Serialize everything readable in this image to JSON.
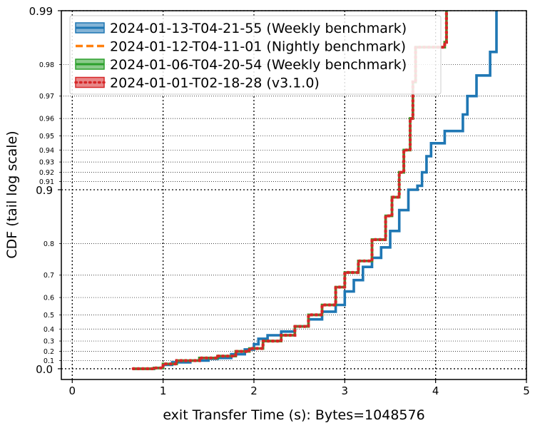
{
  "chart_data": {
    "type": "line",
    "subtype": "step-cdf",
    "xlabel": "exit Transfer Time (s): Bytes=1048576",
    "ylabel": "CDF (tail log scale)",
    "xlim": [
      -0.12,
      5.0
    ],
    "x_ticks": [
      0,
      1,
      2,
      3,
      4,
      5
    ],
    "x_tick_labels": [
      "0",
      "1",
      "2",
      "3",
      "4",
      "5"
    ],
    "y_scale": "tail-log (-log10(1 - p))",
    "ylim": [
      0.0,
      0.99
    ],
    "y_major_ticks": [
      0.0,
      0.9,
      0.99
    ],
    "y_major_tick_labels": [
      "0.0",
      "0.9",
      "0.99"
    ],
    "y_minor_ticks": [
      0.1,
      0.2,
      0.3,
      0.4,
      0.5,
      0.6,
      0.7,
      0.8,
      0.91,
      0.92,
      0.93,
      0.94,
      0.95,
      0.96,
      0.97,
      0.98
    ],
    "y_minor_tick_labels": [
      "0.1",
      "0.2",
      "0.3",
      "0.4",
      "0.5",
      "0.6",
      "0.7",
      "0.8",
      "0.91",
      "0.92",
      "0.93",
      "0.94",
      "0.95",
      "0.96",
      "0.97",
      "0.98"
    ],
    "grid": true,
    "legend_position": "top-left",
    "series": [
      {
        "name": "2024-01-13-T04-21-55 (Weekly benchmark)",
        "color": "#1f77b4",
        "style": "solid",
        "points": [
          [
            0.67,
            0.0
          ],
          [
            0.9,
            0.01
          ],
          [
            1.0,
            0.05
          ],
          [
            1.1,
            0.08
          ],
          [
            1.3,
            0.1
          ],
          [
            1.5,
            0.12
          ],
          [
            1.6,
            0.13
          ],
          [
            1.75,
            0.17
          ],
          [
            1.9,
            0.22
          ],
          [
            2.0,
            0.27
          ],
          [
            2.05,
            0.32
          ],
          [
            2.15,
            0.35
          ],
          [
            2.3,
            0.38
          ],
          [
            2.45,
            0.42
          ],
          [
            2.6,
            0.47
          ],
          [
            2.75,
            0.52
          ],
          [
            2.9,
            0.56
          ],
          [
            3.0,
            0.63
          ],
          [
            3.1,
            0.68
          ],
          [
            3.2,
            0.73
          ],
          [
            3.3,
            0.76
          ],
          [
            3.4,
            0.79
          ],
          [
            3.5,
            0.83
          ],
          [
            3.6,
            0.87
          ],
          [
            3.7,
            0.9
          ],
          [
            3.8,
            0.905
          ],
          [
            3.85,
            0.92
          ],
          [
            3.9,
            0.935
          ],
          [
            3.95,
            0.945
          ],
          [
            4.1,
            0.953
          ],
          [
            4.3,
            0.962
          ],
          [
            4.35,
            0.97
          ],
          [
            4.45,
            0.977
          ],
          [
            4.6,
            0.983
          ],
          [
            4.67,
            0.99
          ]
        ]
      },
      {
        "name": "2024-01-12-T04-11-01 (Nightly benchmark)",
        "color": "#ff7f0e",
        "style": "dashed",
        "points": [
          [
            0.67,
            0.0
          ],
          [
            0.9,
            0.01
          ],
          [
            1.0,
            0.06
          ],
          [
            1.15,
            0.1
          ],
          [
            1.4,
            0.13
          ],
          [
            1.6,
            0.15
          ],
          [
            1.8,
            0.2
          ],
          [
            1.95,
            0.23
          ],
          [
            2.1,
            0.3
          ],
          [
            2.3,
            0.35
          ],
          [
            2.45,
            0.42
          ],
          [
            2.6,
            0.5
          ],
          [
            2.75,
            0.56
          ],
          [
            2.9,
            0.65
          ],
          [
            3.0,
            0.71
          ],
          [
            3.15,
            0.75
          ],
          [
            3.3,
            0.81
          ],
          [
            3.45,
            0.86
          ],
          [
            3.52,
            0.89
          ],
          [
            3.6,
            0.92
          ],
          [
            3.65,
            0.94
          ],
          [
            3.72,
            0.96
          ],
          [
            3.75,
            0.975
          ],
          [
            3.78,
            0.984
          ],
          [
            4.1,
            0.985
          ],
          [
            4.12,
            0.99
          ]
        ]
      },
      {
        "name": "2024-01-06-T04-20-54 (Weekly benchmark)",
        "color": "#2ca02c",
        "style": "solid",
        "points": [
          [
            0.67,
            0.0
          ],
          [
            0.9,
            0.01
          ],
          [
            1.0,
            0.06
          ],
          [
            1.15,
            0.1
          ],
          [
            1.4,
            0.13
          ],
          [
            1.6,
            0.15
          ],
          [
            1.8,
            0.2
          ],
          [
            1.95,
            0.23
          ],
          [
            2.1,
            0.3
          ],
          [
            2.3,
            0.35
          ],
          [
            2.45,
            0.42
          ],
          [
            2.6,
            0.5
          ],
          [
            2.75,
            0.56
          ],
          [
            2.9,
            0.65
          ],
          [
            3.0,
            0.71
          ],
          [
            3.15,
            0.75
          ],
          [
            3.3,
            0.81
          ],
          [
            3.45,
            0.86
          ],
          [
            3.52,
            0.89
          ],
          [
            3.6,
            0.92
          ],
          [
            3.65,
            0.94
          ],
          [
            3.72,
            0.96
          ],
          [
            3.75,
            0.975
          ],
          [
            3.78,
            0.984
          ],
          [
            4.1,
            0.985
          ],
          [
            4.12,
            0.99
          ]
        ]
      },
      {
        "name": "2024-01-01-T02-18-28 (v3.1.0)",
        "color": "#d62728",
        "style": "dotted",
        "points": [
          [
            0.67,
            0.0
          ],
          [
            0.9,
            0.01
          ],
          [
            1.0,
            0.06
          ],
          [
            1.15,
            0.1
          ],
          [
            1.4,
            0.13
          ],
          [
            1.6,
            0.15
          ],
          [
            1.8,
            0.2
          ],
          [
            1.95,
            0.23
          ],
          [
            2.1,
            0.3
          ],
          [
            2.3,
            0.35
          ],
          [
            2.45,
            0.42
          ],
          [
            2.6,
            0.5
          ],
          [
            2.75,
            0.56
          ],
          [
            2.9,
            0.65
          ],
          [
            3.0,
            0.71
          ],
          [
            3.15,
            0.75
          ],
          [
            3.3,
            0.81
          ],
          [
            3.45,
            0.86
          ],
          [
            3.52,
            0.89
          ],
          [
            3.6,
            0.92
          ],
          [
            3.65,
            0.94
          ],
          [
            3.72,
            0.96
          ],
          [
            3.75,
            0.975
          ],
          [
            3.78,
            0.984
          ],
          [
            4.1,
            0.985
          ],
          [
            4.12,
            0.99
          ]
        ]
      }
    ]
  }
}
